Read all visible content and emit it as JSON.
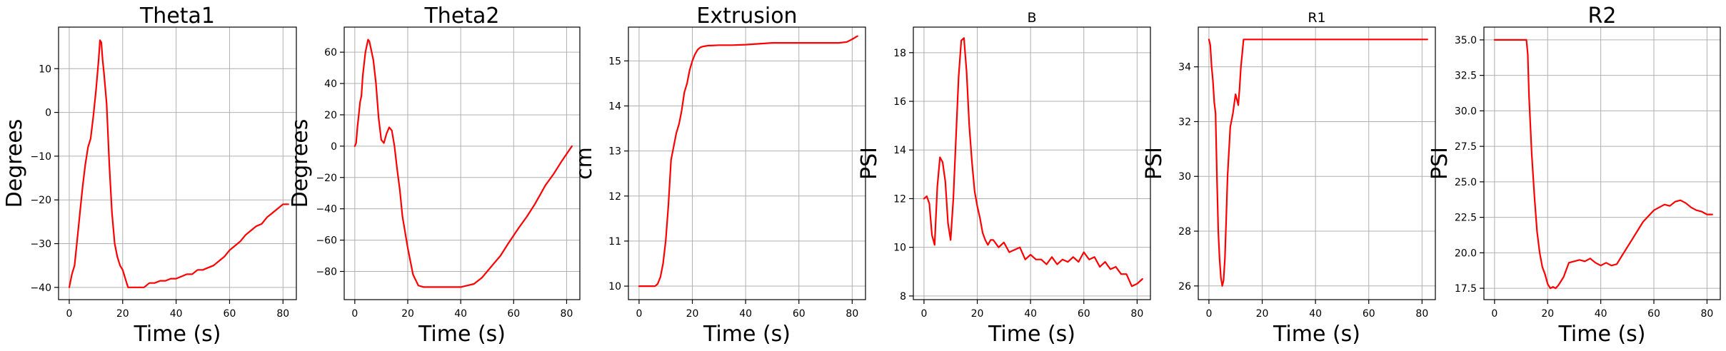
{
  "chart_data": [
    {
      "type": "line",
      "title": "Theta1",
      "xlabel": "Time (s)",
      "ylabel": "Degrees",
      "xlim": [
        -4,
        85
      ],
      "ylim": [
        -42.8,
        19.5
      ],
      "xticks": [
        0,
        20,
        40,
        60,
        80
      ],
      "yticks": [
        -40,
        -30,
        -20,
        -10,
        0,
        10
      ],
      "grid": true,
      "color": "#ff0000",
      "series": [
        {
          "x": [
            0,
            1,
            2,
            3,
            4,
            5,
            6,
            7,
            8,
            9,
            10,
            11,
            11.5,
            12,
            12.5,
            13,
            14,
            15,
            16,
            17,
            18,
            19,
            20,
            21,
            22,
            24,
            26,
            28,
            30,
            32,
            34,
            36,
            38,
            40,
            42,
            44,
            46,
            48,
            50,
            52,
            54,
            56,
            58,
            60,
            62,
            64,
            66,
            68,
            70,
            72,
            74,
            76,
            78,
            80,
            82
          ],
          "y": [
            -40,
            -37,
            -35,
            -29,
            -23,
            -17,
            -12,
            -8,
            -6,
            -1,
            5,
            12,
            16.5,
            16,
            12,
            9,
            2,
            -12,
            -23,
            -30,
            -33,
            -35,
            -36,
            -38,
            -40,
            -40,
            -40,
            -40,
            -39,
            -39,
            -38.5,
            -38.5,
            -38,
            -38,
            -37.5,
            -37,
            -37,
            -36,
            -36,
            -35.5,
            -35,
            -34,
            -33,
            -31.5,
            -30.5,
            -29.5,
            -28,
            -27,
            -26,
            -25.5,
            -24,
            -23,
            -22,
            -21,
            -21
          ]
        }
      ]
    },
    {
      "type": "line",
      "title": "Theta2",
      "xlabel": "Time (s)",
      "ylabel": "Degrees",
      "xlim": [
        -4,
        85
      ],
      "ylim": [
        -98,
        76
      ],
      "xticks": [
        0,
        20,
        40,
        60,
        80
      ],
      "yticks": [
        -80,
        -60,
        -40,
        -20,
        0,
        20,
        40,
        60
      ],
      "grid": true,
      "color": "#ff0000",
      "series": [
        {
          "x": [
            0,
            0.5,
            1,
            1.5,
            2,
            2.5,
            3,
            4,
            5,
            5.5,
            6,
            7,
            8,
            9,
            10,
            11,
            12,
            13,
            14,
            15,
            16,
            17,
            18,
            20,
            22,
            24,
            26,
            30,
            35,
            40,
            45,
            48,
            50,
            52,
            55,
            58,
            60,
            62,
            65,
            68,
            70,
            72,
            75,
            78,
            80,
            82
          ],
          "y": [
            0,
            2,
            12,
            20,
            28,
            32,
            45,
            60,
            68,
            67,
            63,
            55,
            40,
            18,
            4,
            2,
            8,
            12,
            10,
            0,
            -15,
            -28,
            -45,
            -65,
            -82,
            -89,
            -90,
            -90,
            -90,
            -90,
            -88,
            -84,
            -80,
            -76,
            -70,
            -62,
            -57,
            -52,
            -45,
            -37,
            -31,
            -25,
            -18,
            -10,
            -5,
            0
          ]
        }
      ]
    },
    {
      "type": "line",
      "title": "Extrusion",
      "xlabel": "Time (s)",
      "ylabel": "cm",
      "xlim": [
        -4,
        85
      ],
      "ylim": [
        9.7,
        15.75
      ],
      "xticks": [
        0,
        20,
        40,
        60,
        80
      ],
      "yticks": [
        10,
        11,
        12,
        13,
        14,
        15
      ],
      "grid": true,
      "color": "#ff0000",
      "series": [
        {
          "x": [
            0,
            2,
            4,
            6,
            7,
            8,
            9,
            10,
            11,
            12,
            13,
            14,
            15,
            16,
            17,
            18,
            19,
            20,
            21,
            22,
            23,
            24,
            25,
            26,
            27,
            30,
            35,
            40,
            45,
            50,
            55,
            60,
            65,
            70,
            75,
            78,
            80,
            82
          ],
          "y": [
            10,
            10,
            10,
            10,
            10.05,
            10.2,
            10.5,
            11,
            11.8,
            12.8,
            13.1,
            13.4,
            13.6,
            13.9,
            14.3,
            14.5,
            14.8,
            15,
            15.15,
            15.25,
            15.3,
            15.32,
            15.33,
            15.34,
            15.34,
            15.35,
            15.35,
            15.36,
            15.38,
            15.4,
            15.4,
            15.4,
            15.4,
            15.4,
            15.4,
            15.42,
            15.48,
            15.55
          ]
        }
      ]
    },
    {
      "type": "line",
      "title": "B",
      "xlabel": "Time (s)",
      "ylabel": "PSI",
      "xlim": [
        -4,
        85
      ],
      "ylim": [
        7.85,
        19.05
      ],
      "xticks": [
        0,
        20,
        40,
        60,
        80
      ],
      "yticks": [
        8,
        10,
        12,
        14,
        16,
        18
      ],
      "grid": true,
      "color": "#ff0000",
      "series": [
        {
          "x": [
            0,
            1,
            2,
            3,
            4,
            5,
            6,
            7,
            8,
            9,
            10,
            11,
            12,
            13,
            14,
            15,
            16,
            17,
            18,
            19,
            20,
            21,
            22,
            23,
            24,
            25,
            26,
            28,
            30,
            32,
            34,
            36,
            38,
            40,
            42,
            44,
            46,
            48,
            50,
            52,
            54,
            56,
            58,
            60,
            62,
            64,
            66,
            68,
            70,
            72,
            74,
            76,
            78,
            80,
            82
          ],
          "y": [
            12,
            12.1,
            11.8,
            10.5,
            10.1,
            12.5,
            13.7,
            13.5,
            12.7,
            11,
            10.3,
            12,
            14.5,
            17,
            18.5,
            18.6,
            17.2,
            15,
            13.5,
            12.3,
            11.7,
            11.2,
            10.6,
            10.3,
            10.1,
            10.3,
            10.3,
            10,
            10.2,
            9.8,
            9.9,
            10,
            9.5,
            9.7,
            9.5,
            9.5,
            9.3,
            9.6,
            9.3,
            9.5,
            9.4,
            9.6,
            9.4,
            9.8,
            9.5,
            9.6,
            9.2,
            9.4,
            9.1,
            9.2,
            8.9,
            8.9,
            8.4,
            8.5,
            8.7
          ]
        }
      ]
    },
    {
      "type": "line",
      "title": "R1",
      "xlabel": "Time (s)",
      "ylabel": "PSI",
      "xlim": [
        -4,
        85
      ],
      "ylim": [
        25.5,
        35.45
      ],
      "xticks": [
        0,
        20,
        40,
        60,
        80
      ],
      "yticks": [
        26,
        28,
        30,
        32,
        34
      ],
      "grid": true,
      "color": "#ff0000",
      "series": [
        {
          "x": [
            0,
            0.5,
            1,
            1.5,
            2,
            2.5,
            3,
            3.5,
            4,
            4.5,
            5,
            5.5,
            6,
            6.5,
            7,
            8,
            9,
            10,
            10.5,
            11,
            11.5,
            12,
            12.5,
            13,
            14,
            16,
            20,
            40,
            60,
            82
          ],
          "y": [
            35,
            34.8,
            34,
            33.5,
            32.7,
            32.3,
            30,
            28,
            27,
            26.3,
            26,
            26.2,
            27,
            28.5,
            30,
            31.8,
            32.3,
            33,
            32.8,
            32.6,
            33.2,
            34,
            34.5,
            35,
            35,
            35,
            35,
            35,
            35,
            35
          ]
        }
      ]
    },
    {
      "type": "line",
      "title": "R2",
      "xlabel": "Time (s)",
      "ylabel": "PSI",
      "xlim": [
        -4,
        85
      ],
      "ylim": [
        16.7,
        35.9
      ],
      "xticks": [
        0,
        20,
        40,
        60,
        80
      ],
      "yticks": [
        17.5,
        20.0,
        22.5,
        25.0,
        27.5,
        30.0,
        32.5,
        35.0
      ],
      "grid": true,
      "color": "#ff0000",
      "series": [
        {
          "x": [
            0,
            4,
            8,
            12,
            12.5,
            13,
            14,
            15,
            16,
            17,
            18,
            19,
            20,
            21,
            22,
            23,
            24,
            25,
            26,
            28,
            30,
            32,
            34,
            36,
            38,
            40,
            42,
            44,
            46,
            48,
            50,
            52,
            54,
            56,
            58,
            60,
            62,
            64,
            66,
            68,
            70,
            72,
            74,
            76,
            78,
            80,
            82
          ],
          "y": [
            35,
            35,
            35,
            35,
            34,
            31,
            27,
            24,
            21.5,
            20,
            19,
            18.5,
            17.8,
            17.5,
            17.6,
            17.5,
            17.7,
            18,
            18.3,
            19.3,
            19.4,
            19.5,
            19.4,
            19.6,
            19.3,
            19.1,
            19.3,
            19.1,
            19.2,
            19.8,
            20.4,
            21,
            21.6,
            22.2,
            22.6,
            23,
            23.2,
            23.4,
            23.3,
            23.6,
            23.7,
            23.5,
            23.2,
            23,
            22.9,
            22.7,
            22.7
          ]
        }
      ]
    }
  ]
}
